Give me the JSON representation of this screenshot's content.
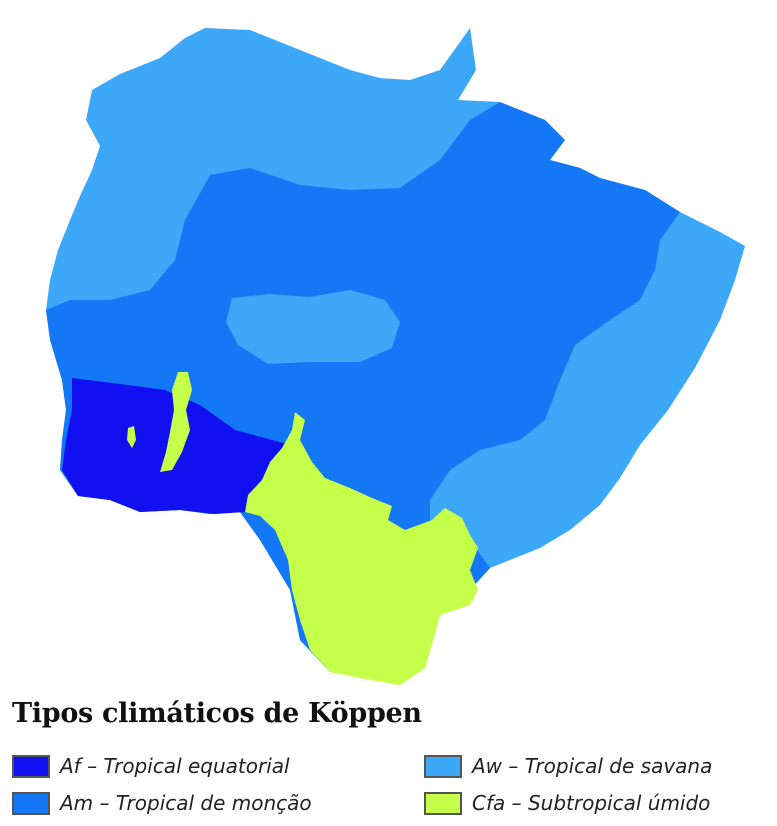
{
  "legend": {
    "title": "Tipos climáticos de Köppen",
    "items": [
      {
        "code": "Af",
        "label": "Af – Tropical equatorial",
        "color": "#1010f0"
      },
      {
        "code": "Am",
        "label": "Am – Tropical de monção",
        "color": "#1477f5"
      },
      {
        "code": "Aw",
        "label": "Aw – Tropical de savana",
        "color": "#3ea8f8"
      },
      {
        "code": "Cfa",
        "label": "Cfa – Subtropical úmido",
        "color": "#c6ff4a"
      }
    ]
  }
}
